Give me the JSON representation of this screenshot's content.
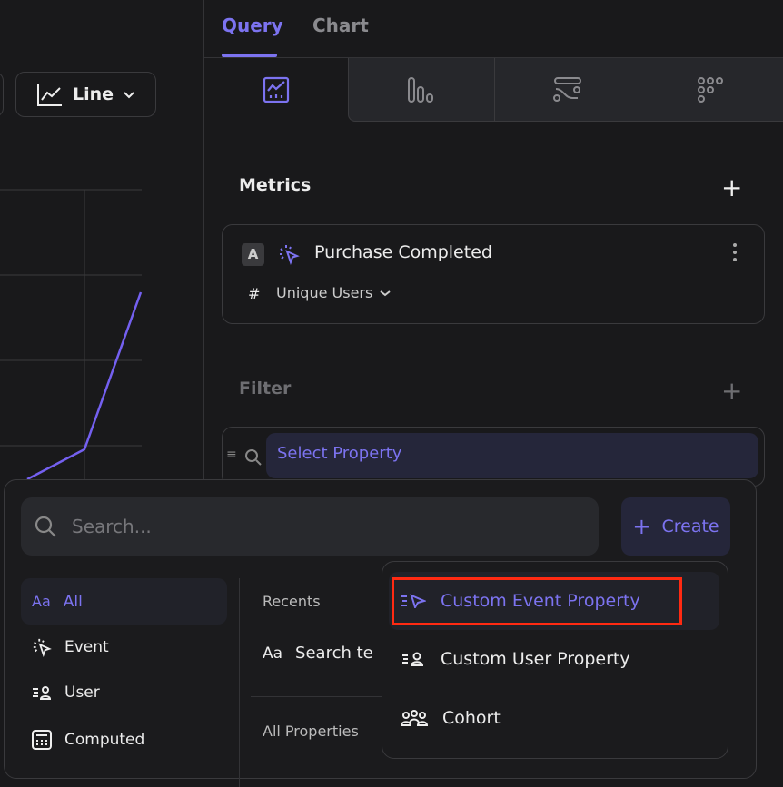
{
  "toolbar": {
    "chart_type_label": "Line"
  },
  "tabs": [
    {
      "label": "Query",
      "active": true
    },
    {
      "label": "Chart",
      "active": false
    }
  ],
  "view_icons": [
    "line-chart-icon",
    "bar-chart-icon",
    "funnel-flow-icon",
    "retention-grid-icon"
  ],
  "metrics": {
    "title": "Metrics",
    "item": {
      "letter": "A",
      "event": "Purchase Completed",
      "measure_symbol": "#",
      "measure": "Unique Users"
    }
  },
  "filter": {
    "title": "Filter",
    "select_placeholder": "Select Property"
  },
  "popup": {
    "search_placeholder": "Search...",
    "create_label": "Create",
    "categories": [
      {
        "icon": "Aa",
        "label": "All",
        "active": true
      },
      {
        "label": "Event"
      },
      {
        "label": "User"
      },
      {
        "label": "Computed"
      }
    ],
    "recents_title": "Recents",
    "recent_item": "Search te",
    "recent_icon_text": "Aa",
    "all_properties_title": "All Properties"
  },
  "create_menu": {
    "items": [
      {
        "label": "Custom Event Property",
        "highlighted": true
      },
      {
        "label": "Custom User Property"
      },
      {
        "label": "Cohort"
      }
    ]
  },
  "colors": {
    "accent": "#7c73f0",
    "background": "#19191b",
    "highlight_box": "#ff2a12"
  }
}
